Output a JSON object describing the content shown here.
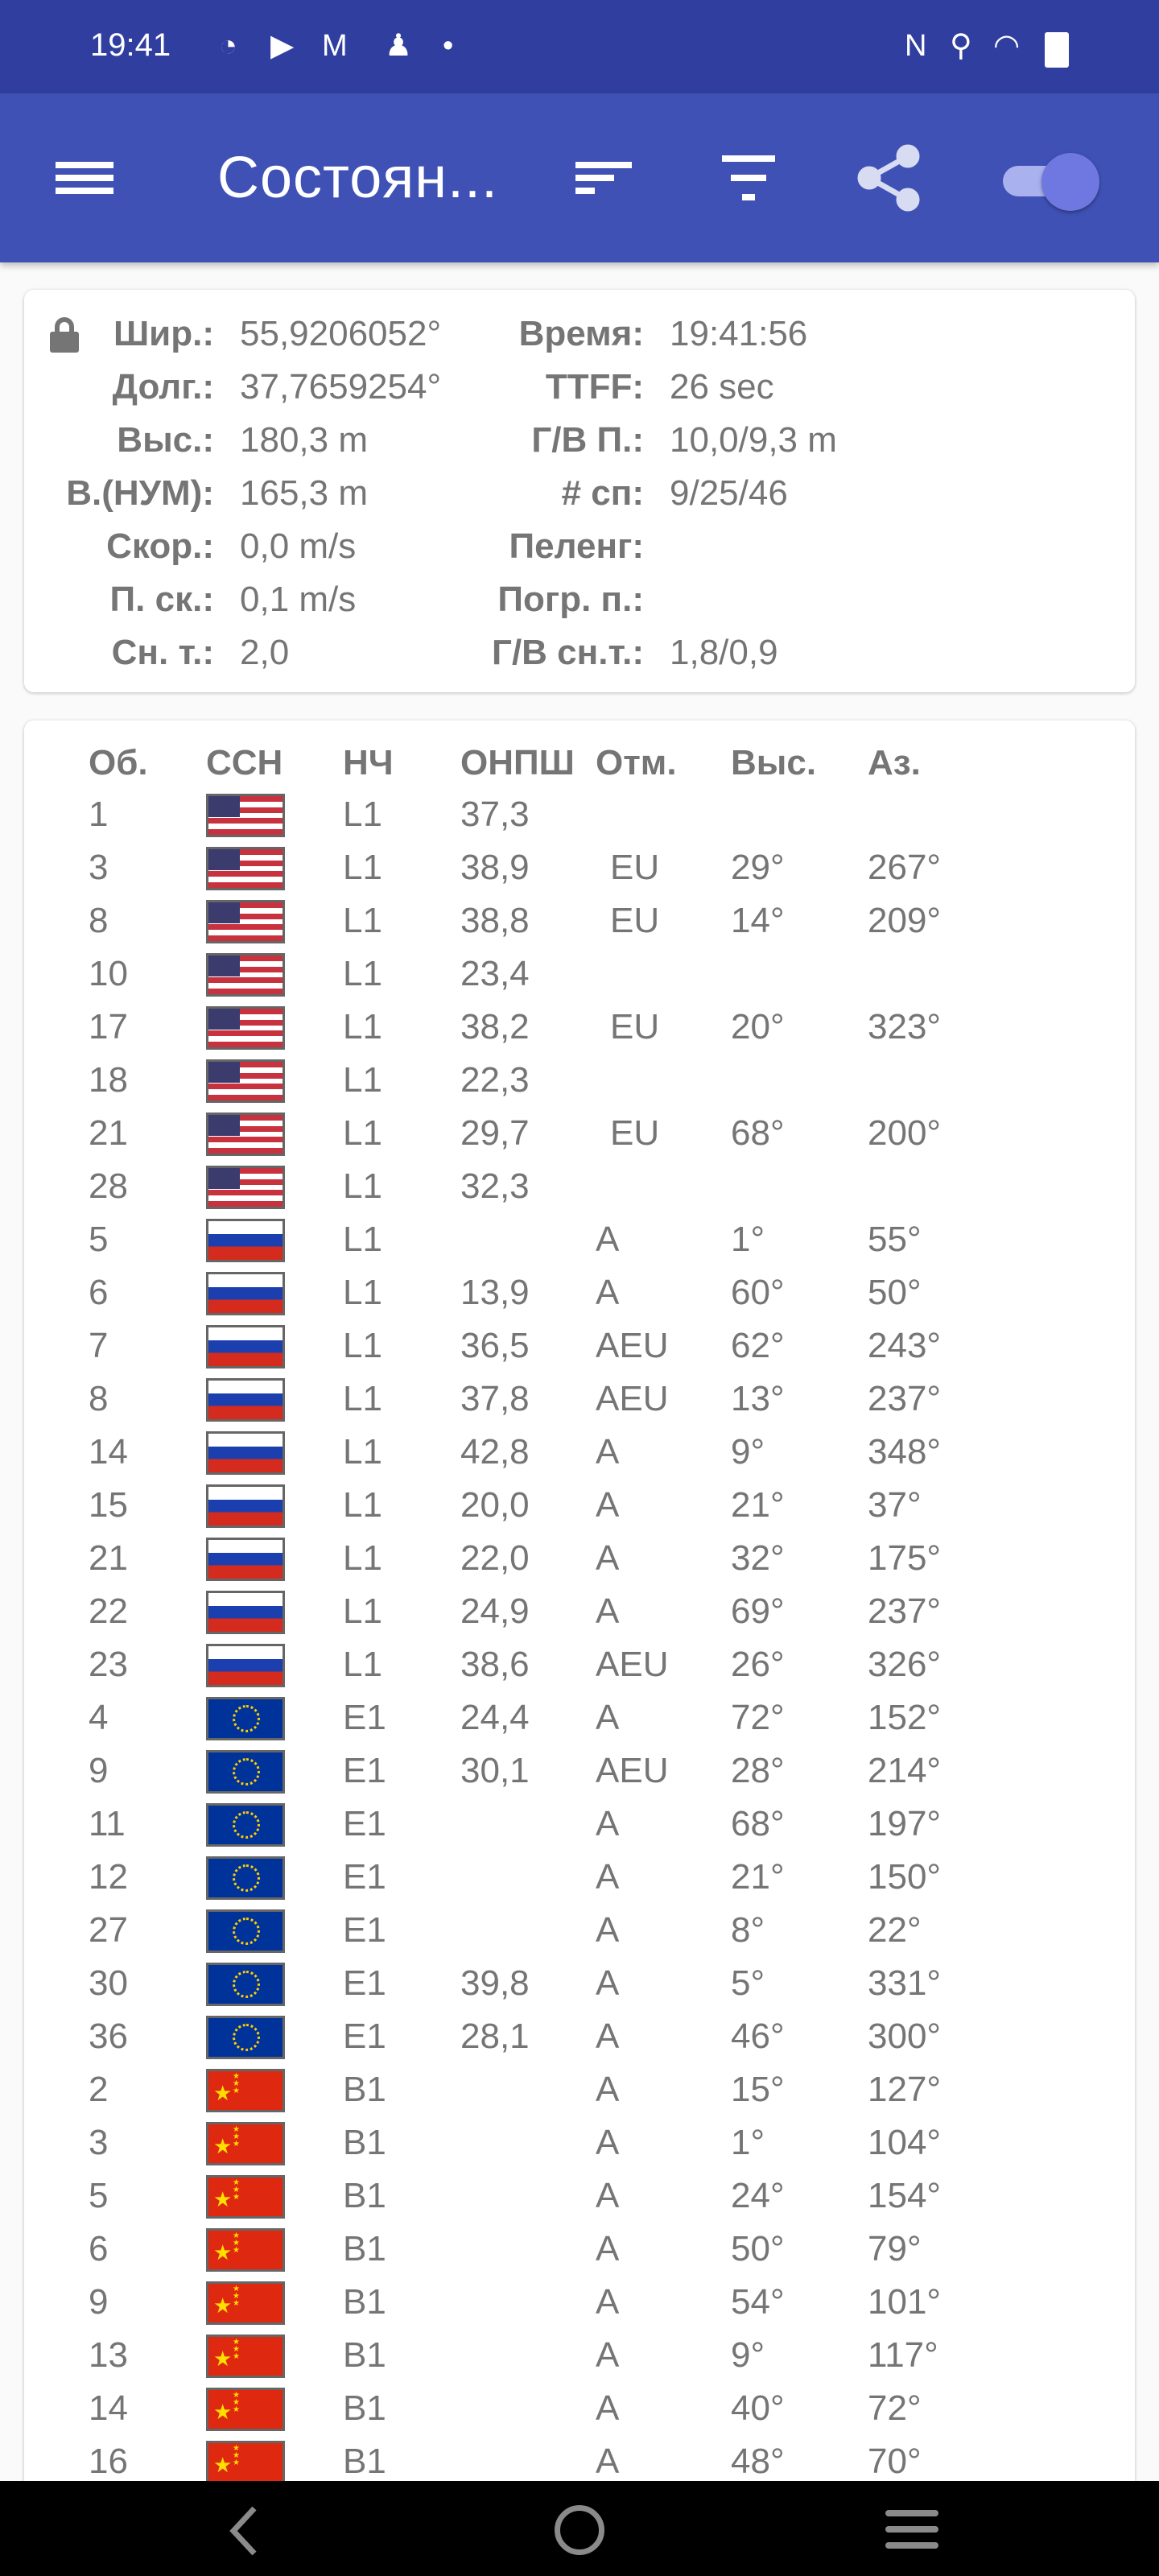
{
  "status_bar": {
    "time": "19:41",
    "icons": [
      "speedometer-icon",
      "youtube-icon",
      "gmail-icon",
      "keyhole-icon",
      "dot-icon",
      "nfc-icon",
      "location-icon",
      "wifi-icon",
      "battery-icon"
    ]
  },
  "app_bar": {
    "title": "Состоян...",
    "icons": [
      "menu-icon",
      "sort-icon",
      "filter-icon",
      "share-icon",
      "toggle-switch"
    ],
    "toggle_on": true,
    "colors": {
      "status": "#303f9f",
      "primary": "#3f51b5",
      "accent": "#6e78e0"
    }
  },
  "info": {
    "left": [
      {
        "label": "Шир.:",
        "value": "55,9206052°"
      },
      {
        "label": "Долг.:",
        "value": "37,7659254°"
      },
      {
        "label": "Выс.:",
        "value": "180,3 m"
      },
      {
        "label": "В.(НУМ):",
        "value": "165,3 m"
      },
      {
        "label": "Скор.:",
        "value": "0,0 m/s"
      },
      {
        "label": "П. ск.:",
        "value": "0,1 m/s"
      },
      {
        "label": "Сн. т.:",
        "value": "2,0"
      }
    ],
    "right": [
      {
        "label": "Время:",
        "value": "19:41:56"
      },
      {
        "label": "TTFF:",
        "value": "26 sec"
      },
      {
        "label": "Г/В П.:",
        "value": "10,0/9,3 m"
      },
      {
        "label": "# сп:",
        "value": "9/25/46"
      },
      {
        "label": "Пеленг:",
        "value": ""
      },
      {
        "label": "Погр. п.:",
        "value": ""
      },
      {
        "label": "Г/В сн.т.:",
        "value": "1,8/0,9"
      }
    ]
  },
  "table": {
    "headers": [
      "Об.",
      "ССН",
      "НЧ",
      "ОНПШ",
      "Отм.",
      "Выс.",
      "Аз."
    ],
    "rows": [
      [
        "1",
        "us",
        "L1",
        "37,3",
        "",
        "",
        ""
      ],
      [
        "3",
        "us",
        "L1",
        "38,9",
        "EU",
        "29°",
        "267°"
      ],
      [
        "8",
        "us",
        "L1",
        "38,8",
        "EU",
        "14°",
        "209°"
      ],
      [
        "10",
        "us",
        "L1",
        "23,4",
        "",
        "",
        ""
      ],
      [
        "17",
        "us",
        "L1",
        "38,2",
        "EU",
        "20°",
        "323°"
      ],
      [
        "18",
        "us",
        "L1",
        "22,3",
        "",
        "",
        ""
      ],
      [
        "21",
        "us",
        "L1",
        "29,7",
        "EU",
        "68°",
        "200°"
      ],
      [
        "28",
        "us",
        "L1",
        "32,3",
        "",
        "",
        ""
      ],
      [
        "5",
        "ru",
        "L1",
        "",
        "A",
        "1°",
        "55°"
      ],
      [
        "6",
        "ru",
        "L1",
        "13,9",
        "A",
        "60°",
        "50°"
      ],
      [
        "7",
        "ru",
        "L1",
        "36,5",
        "AEU",
        "62°",
        "243°"
      ],
      [
        "8",
        "ru",
        "L1",
        "37,8",
        "AEU",
        "13°",
        "237°"
      ],
      [
        "14",
        "ru",
        "L1",
        "42,8",
        "A",
        "9°",
        "348°"
      ],
      [
        "15",
        "ru",
        "L1",
        "20,0",
        "A",
        "21°",
        "37°"
      ],
      [
        "21",
        "ru",
        "L1",
        "22,0",
        "A",
        "32°",
        "175°"
      ],
      [
        "22",
        "ru",
        "L1",
        "24,9",
        "A",
        "69°",
        "237°"
      ],
      [
        "23",
        "ru",
        "L1",
        "38,6",
        "AEU",
        "26°",
        "326°"
      ],
      [
        "4",
        "eu",
        "E1",
        "24,4",
        "A",
        "72°",
        "152°"
      ],
      [
        "9",
        "eu",
        "E1",
        "30,1",
        "AEU",
        "28°",
        "214°"
      ],
      [
        "11",
        "eu",
        "E1",
        "",
        "A",
        "68°",
        "197°"
      ],
      [
        "12",
        "eu",
        "E1",
        "",
        "A",
        "21°",
        "150°"
      ],
      [
        "27",
        "eu",
        "E1",
        "",
        "A",
        "8°",
        "22°"
      ],
      [
        "30",
        "eu",
        "E1",
        "39,8",
        "A",
        "5°",
        "331°"
      ],
      [
        "36",
        "eu",
        "E1",
        "28,1",
        "A",
        "46°",
        "300°"
      ],
      [
        "2",
        "cn",
        "B1",
        "",
        "A",
        "15°",
        "127°"
      ],
      [
        "3",
        "cn",
        "B1",
        "",
        "A",
        "1°",
        "104°"
      ],
      [
        "5",
        "cn",
        "B1",
        "",
        "A",
        "24°",
        "154°"
      ],
      [
        "6",
        "cn",
        "B1",
        "",
        "A",
        "50°",
        "79°"
      ],
      [
        "9",
        "cn",
        "B1",
        "",
        "A",
        "54°",
        "101°"
      ],
      [
        "13",
        "cn",
        "B1",
        "",
        "A",
        "9°",
        "117°"
      ],
      [
        "14",
        "cn",
        "B1",
        "",
        "A",
        "40°",
        "72°"
      ],
      [
        "16",
        "cn",
        "B1",
        "",
        "A",
        "48°",
        "70°"
      ]
    ]
  },
  "nav_bar": {
    "icons": [
      "back-icon",
      "home-icon",
      "recents-icon"
    ]
  }
}
